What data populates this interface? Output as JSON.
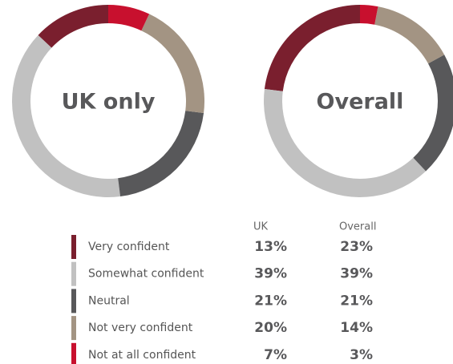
{
  "chart_data": [
    {
      "type": "pie",
      "title": "UK only",
      "categories": [
        "Very confident",
        "Somewhat confident",
        "Neutral",
        "Not very confident",
        "Not at all confident"
      ],
      "values": [
        13,
        39,
        21,
        20,
        7
      ],
      "value_labels": [
        "13%",
        "39%",
        "21%",
        "20%",
        "7%"
      ],
      "colors": [
        "#7a1f2e",
        "#c1c1c1",
        "#58585a",
        "#a39483",
        "#c8102e"
      ]
    },
    {
      "type": "pie",
      "title": "Overall",
      "categories": [
        "Very confident",
        "Somewhat confident",
        "Neutral",
        "Not very confident",
        "Not at all confident"
      ],
      "values": [
        23,
        39,
        21,
        14,
        3
      ],
      "value_labels": [
        "23%",
        "39%",
        "21%",
        "14%",
        "3%"
      ],
      "colors": [
        "#7a1f2e",
        "#c1c1c1",
        "#58585a",
        "#a39483",
        "#c8102e"
      ]
    }
  ],
  "table": {
    "columns": [
      "UK",
      "Overall"
    ]
  }
}
